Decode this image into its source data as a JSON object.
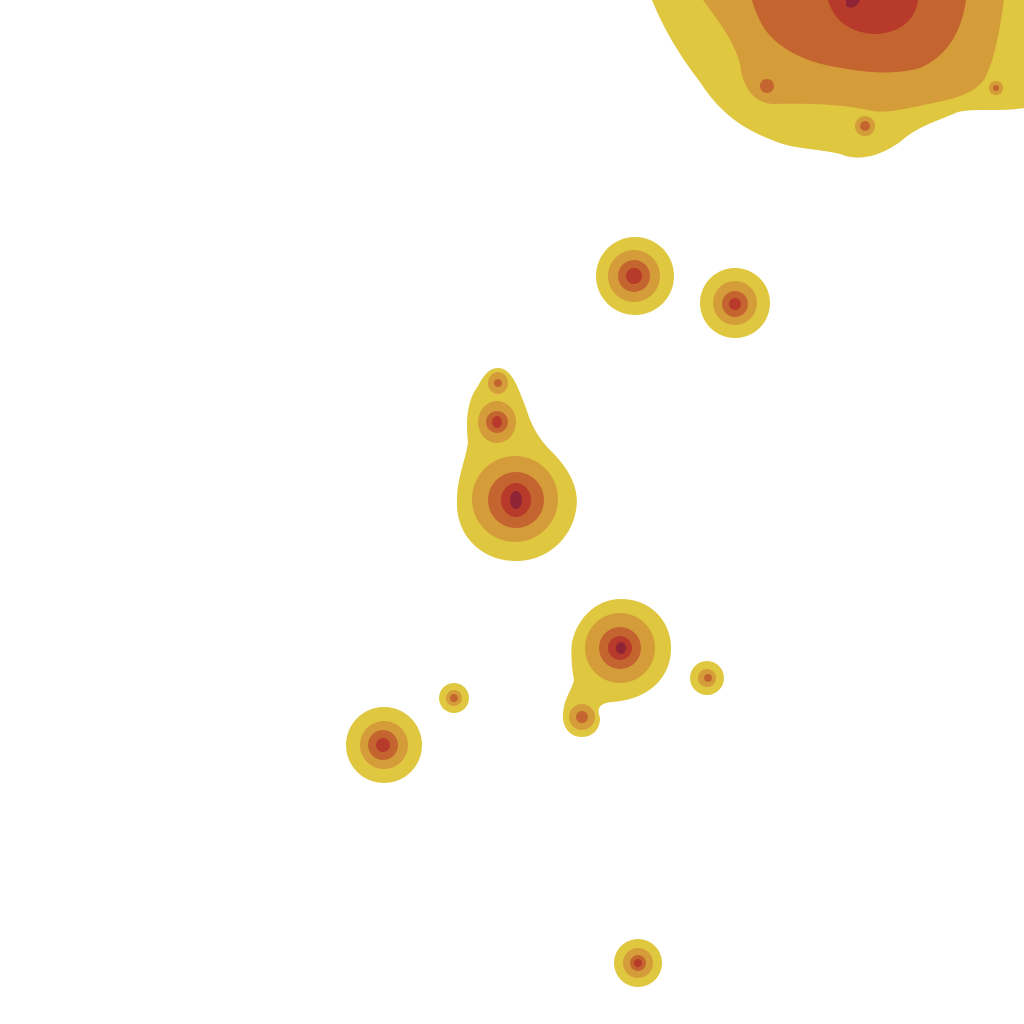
{
  "map": {
    "type": "density-heatmap-tile",
    "background_color": "#ffffff",
    "legend": "none",
    "color_levels": [
      {
        "level": 1,
        "color": "#dfc740"
      },
      {
        "level": 2,
        "color": "#d59c3a"
      },
      {
        "level": 3,
        "color": "#c4652f"
      },
      {
        "level": 4,
        "color": "#b73a2a"
      },
      {
        "level": 5,
        "color": "#8e2435"
      }
    ],
    "hotspots": [
      {
        "name": "hotspot-top-right-cluster",
        "peak_level": 4
      },
      {
        "name": "hotspot-a",
        "peak_level": 4
      },
      {
        "name": "hotspot-b",
        "peak_level": 4
      },
      {
        "name": "hotspot-c-small",
        "peak_level": 3
      },
      {
        "name": "hotspot-c-mid",
        "peak_level": 4
      },
      {
        "name": "hotspot-c-large",
        "peak_level": 5
      },
      {
        "name": "hotspot-d-large",
        "peak_level": 5
      },
      {
        "name": "hotspot-d-tail",
        "peak_level": 3
      },
      {
        "name": "hotspot-e",
        "peak_level": 3
      },
      {
        "name": "hotspot-f",
        "peak_level": 3
      },
      {
        "name": "hotspot-g",
        "peak_level": 4
      },
      {
        "name": "hotspot-h",
        "peak_level": 4
      }
    ]
  }
}
